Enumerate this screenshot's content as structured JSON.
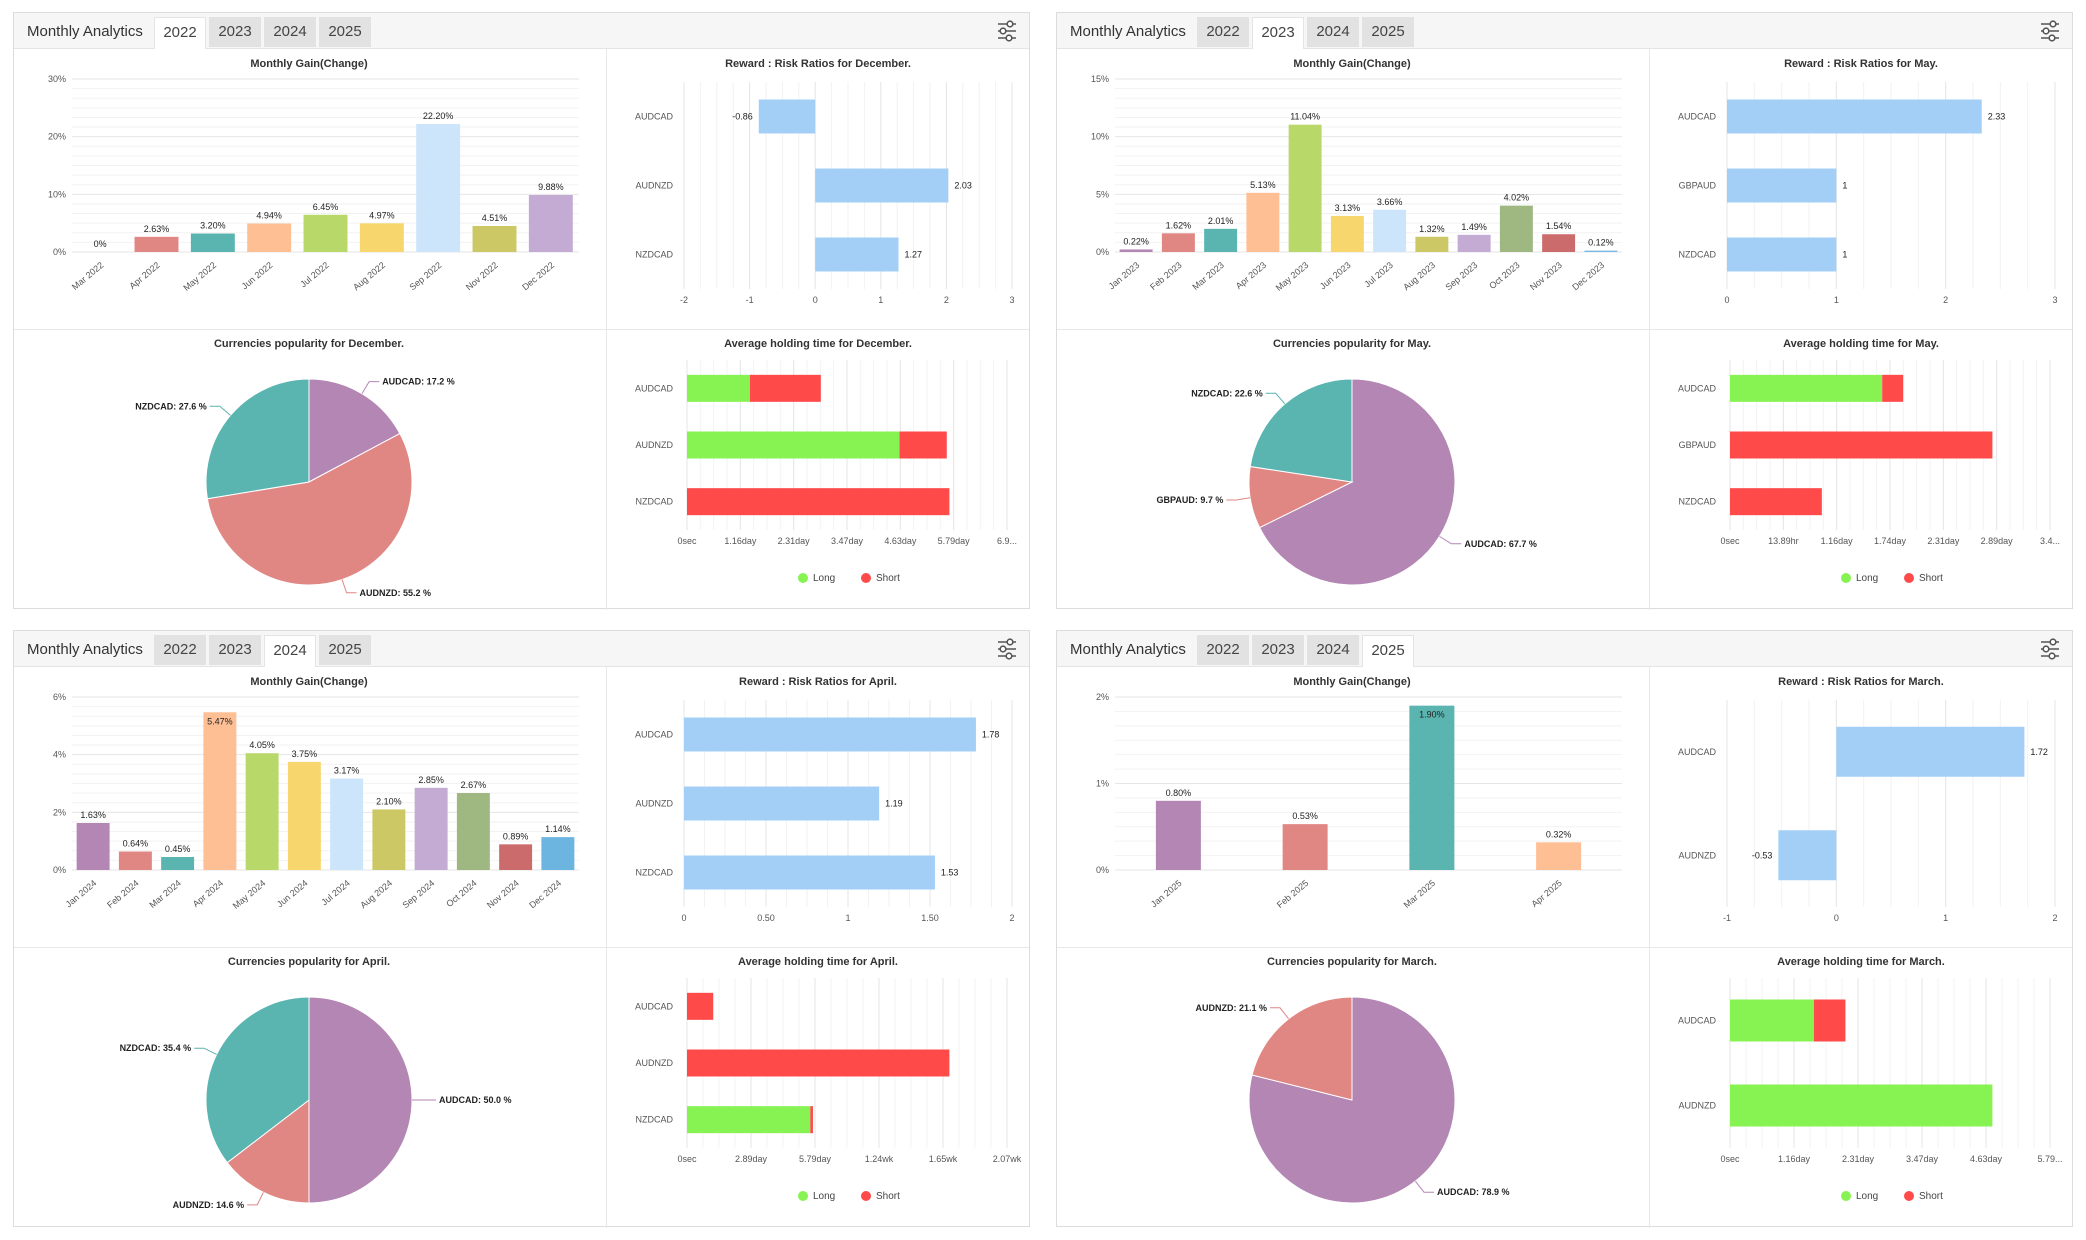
{
  "panels": [
    {
      "title": "Monthly Analytics",
      "tabs": [
        "2022",
        "2023",
        "2024",
        "2025"
      ],
      "active_tab": 0,
      "gain": {
        "title": "Monthly Gain(Change)",
        "yticks": [
          "0%",
          "10%",
          "20%",
          "30%"
        ],
        "ymax": 30,
        "categories": [
          "Mar 2022",
          "Apr 2022",
          "May 2022",
          "Jun 2022",
          "Jul 2022",
          "Aug 2022",
          "Sep 2022",
          "Nov 2022",
          "Dec 2022"
        ],
        "values": [
          0,
          2.63,
          3.2,
          4.94,
          6.45,
          4.97,
          22.2,
          4.51,
          9.88
        ],
        "labels": [
          "0%",
          "2.63%",
          "3.20%",
          "4.94%",
          "6.45%",
          "4.97%",
          "22.20%",
          "4.51%",
          "9.88%"
        ],
        "colors": [
          "#e08683",
          "#e08683",
          "#5ab4b0",
          "#ffbf94",
          "#b9d86a",
          "#f7d66e",
          "#cce5fa",
          "#ccc866",
          "#c3abd4"
        ]
      },
      "rr": {
        "title": "Reward : Risk Ratios for December.",
        "categories": [
          "AUDCAD",
          "AUDNZD",
          "NZDCAD"
        ],
        "values": [
          -0.86,
          2.03,
          1.27
        ],
        "labels": [
          "-0.86",
          "2.03",
          "1.27"
        ],
        "xmin": -2,
        "xmax": 3,
        "xticks": [
          "-2",
          "-1",
          "0",
          "1",
          "2",
          "3"
        ]
      },
      "pie": {
        "title": "Currencies popularity for December.",
        "slices": [
          {
            "label": "AUDCAD: 17.2 %",
            "value": 17.2,
            "color": "#b386b3"
          },
          {
            "label": "AUDNZD: 55.2 %",
            "value": 55.2,
            "color": "#e08683"
          },
          {
            "label": "NZDCAD: 27.6 %",
            "value": 27.6,
            "color": "#5ab4b0"
          }
        ]
      },
      "hold": {
        "title": "Average holding time for December.",
        "categories": [
          "AUDCAD",
          "AUDNZD",
          "NZDCAD"
        ],
        "long": [
          0.24,
          0.81,
          0
        ],
        "short": [
          0.27,
          0.18,
          1.0
        ],
        "xticks": [
          "0sec",
          "1.16day",
          "2.31day",
          "3.47day",
          "4.63day",
          "5.79day",
          "6.9..."
        ],
        "legend_long": "Long",
        "legend_short": "Short"
      }
    },
    {
      "title": "Monthly Analytics",
      "tabs": [
        "2022",
        "2023",
        "2024",
        "2025"
      ],
      "active_tab": 1,
      "gain": {
        "title": "Monthly Gain(Change)",
        "yticks": [
          "0%",
          "5%",
          "10%",
          "15%"
        ],
        "ymax": 15,
        "categories": [
          "Jan 2023",
          "Feb 2023",
          "Mar 2023",
          "Apr 2023",
          "May 2023",
          "Jun 2023",
          "Jul 2023",
          "Aug 2023",
          "Sep 2023",
          "Oct 2023",
          "Nov 2023",
          "Dec 2023"
        ],
        "values": [
          0.22,
          1.62,
          2.01,
          5.13,
          11.04,
          3.13,
          3.66,
          1.32,
          1.49,
          4.02,
          1.54,
          0.12
        ],
        "labels": [
          "0.22%",
          "1.62%",
          "2.01%",
          "5.13%",
          "11.04%",
          "3.13%",
          "3.66%",
          "1.32%",
          "1.49%",
          "4.02%",
          "1.54%",
          "0.12%"
        ],
        "colors": [
          "#b386b3",
          "#e08683",
          "#5ab4b0",
          "#ffbf94",
          "#b9d86a",
          "#f7d66e",
          "#cce5fa",
          "#ccc866",
          "#c3abd4",
          "#9fb882",
          "#cc6b6b",
          "#7ab8e8"
        ]
      },
      "rr": {
        "title": "Reward : Risk Ratios for May.",
        "categories": [
          "AUDCAD",
          "GBPAUD",
          "NZDCAD"
        ],
        "values": [
          2.33,
          1,
          1
        ],
        "labels": [
          "2.33",
          "1",
          "1"
        ],
        "xmin": 0,
        "xmax": 3,
        "xticks": [
          "0",
          "1",
          "2",
          "3"
        ]
      },
      "pie": {
        "title": "Currencies popularity for May.",
        "slices": [
          {
            "label": "AUDCAD: 67.7 %",
            "value": 67.7,
            "color": "#b386b3"
          },
          {
            "label": "GBPAUD: 9.7 %",
            "value": 9.7,
            "color": "#e08683"
          },
          {
            "label": "NZDCAD: 22.6 %",
            "value": 22.6,
            "color": "#5ab4b0"
          }
        ]
      },
      "hold": {
        "title": "Average holding time for May.",
        "categories": [
          "AUDCAD",
          "GBPAUD",
          "NZDCAD"
        ],
        "long": [
          0.58,
          0,
          0
        ],
        "short": [
          0.08,
          1.0,
          0.35
        ],
        "xticks": [
          "0sec",
          "13.89hr",
          "1.16day",
          "1.74day",
          "2.31day",
          "2.89day",
          "3.4..."
        ],
        "legend_long": "Long",
        "legend_short": "Short"
      }
    },
    {
      "title": "Monthly Analytics",
      "tabs": [
        "2022",
        "2023",
        "2024",
        "2025"
      ],
      "active_tab": 2,
      "gain": {
        "title": "Monthly Gain(Change)",
        "yticks": [
          "0%",
          "2%",
          "4%",
          "6%"
        ],
        "ymax": 6,
        "categories": [
          "Jan 2024",
          "Feb 2024",
          "Mar 2024",
          "Apr 2024",
          "May 2024",
          "Jun 2024",
          "Jul 2024",
          "Aug 2024",
          "Sep 2024",
          "Oct 2024",
          "Nov 2024",
          "Dec 2024"
        ],
        "values": [
          1.63,
          0.64,
          0.45,
          5.47,
          4.05,
          3.75,
          3.17,
          2.1,
          2.85,
          2.67,
          0.89,
          1.14
        ],
        "labels": [
          "1.63%",
          "0.64%",
          "0.45%",
          "5.47%",
          "4.05%",
          "3.75%",
          "3.17%",
          "2.10%",
          "2.85%",
          "2.67%",
          "0.89%",
          "1.14%"
        ],
        "colors": [
          "#b386b3",
          "#e08683",
          "#5ab4b0",
          "#ffbf94",
          "#b9d86a",
          "#f7d66e",
          "#cce5fa",
          "#ccc866",
          "#c3abd4",
          "#9fb882",
          "#cc6b6b",
          "#6bb5e0"
        ]
      },
      "rr": {
        "title": "Reward : Risk Ratios for April.",
        "categories": [
          "AUDCAD",
          "AUDNZD",
          "NZDCAD"
        ],
        "values": [
          1.78,
          1.19,
          1.53
        ],
        "labels": [
          "1.78",
          "1.19",
          "1.53"
        ],
        "xmin": 0,
        "xmax": 2,
        "xticks": [
          "0",
          "0.50",
          "1",
          "1.50",
          "2"
        ]
      },
      "pie": {
        "title": "Currencies popularity for April.",
        "slices": [
          {
            "label": "AUDCAD: 50.0 %",
            "value": 50.0,
            "color": "#b386b3"
          },
          {
            "label": "AUDNZD: 14.6 %",
            "value": 14.6,
            "color": "#e08683"
          },
          {
            "label": "NZDCAD: 35.4 %",
            "value": 35.4,
            "color": "#5ab4b0"
          }
        ]
      },
      "hold": {
        "title": "Average holding time for April.",
        "categories": [
          "AUDCAD",
          "AUDNZD",
          "NZDCAD"
        ],
        "long": [
          0,
          0,
          0.47
        ],
        "short": [
          0.1,
          1.0,
          0.01
        ],
        "xticks": [
          "0sec",
          "2.89day",
          "5.79day",
          "1.24wk",
          "1.65wk",
          "2.07wk"
        ],
        "legend_long": "Long",
        "legend_short": "Short"
      }
    },
    {
      "title": "Monthly Analytics",
      "tabs": [
        "2022",
        "2023",
        "2024",
        "2025"
      ],
      "active_tab": 3,
      "gain": {
        "title": "Monthly Gain(Change)",
        "yticks": [
          "0%",
          "1%",
          "2%"
        ],
        "ymax": 2,
        "categories": [
          "Jan 2025",
          "Feb 2025",
          "Mar 2025",
          "Apr 2025"
        ],
        "values": [
          0.8,
          0.53,
          1.9,
          0.32
        ],
        "labels": [
          "0.80%",
          "0.53%",
          "1.90%",
          "0.32%"
        ],
        "colors": [
          "#b386b3",
          "#e08683",
          "#5ab4b0",
          "#ffbf94"
        ]
      },
      "rr": {
        "title": "Reward : Risk Ratios for March.",
        "categories": [
          "AUDCAD",
          "AUDNZD"
        ],
        "values": [
          1.72,
          -0.53
        ],
        "labels": [
          "1.72",
          "-0.53"
        ],
        "xmin": -1,
        "xmax": 2,
        "xticks": [
          "-1",
          "0",
          "1",
          "2"
        ]
      },
      "pie": {
        "title": "Currencies popularity for March.",
        "slices": [
          {
            "label": "AUDCAD: 78.9 %",
            "value": 78.9,
            "color": "#b386b3"
          },
          {
            "label": "AUDNZD: 21.1 %",
            "value": 21.1,
            "color": "#e08683"
          }
        ]
      },
      "hold": {
        "title": "Average holding time for March.",
        "categories": [
          "AUDCAD",
          "AUDNZD"
        ],
        "long": [
          0.32,
          1.0
        ],
        "short": [
          0.12,
          0
        ],
        "xticks": [
          "0sec",
          "1.16day",
          "2.31day",
          "3.47day",
          "4.63day",
          "5.79..."
        ],
        "legend_long": "Long",
        "legend_short": "Short"
      }
    }
  ],
  "colors": {
    "long": "#86f352",
    "short": "#ff4a4a",
    "rr_bar": "#a3cff7"
  }
}
